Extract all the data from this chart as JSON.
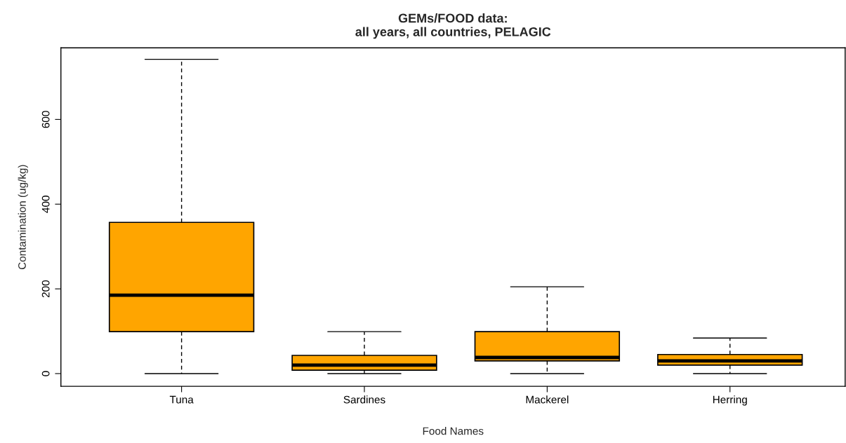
{
  "chart_data": {
    "type": "box",
    "title": "GEMs/FOOD data:\nall years, all countries, PELAGIC",
    "xlabel": "Food Names",
    "ylabel": "Contamination (ug/kg)",
    "categories": [
      "Tuna",
      "Sardines",
      "Mackerel",
      "Herring"
    ],
    "color": "#ffa500",
    "boxes": [
      {
        "low": 0,
        "q1": 99,
        "median": 185,
        "q3": 357,
        "high": 742
      },
      {
        "low": 0,
        "q1": 8,
        "median": 20,
        "q3": 43,
        "high": 99
      },
      {
        "low": 0,
        "q1": 30,
        "median": 38,
        "q3": 99,
        "high": 205
      },
      {
        "low": 0,
        "q1": 20,
        "median": 30,
        "q3": 45,
        "high": 84
      }
    ],
    "ylim": [
      -30,
      769
    ],
    "yticks": [
      0,
      200,
      400,
      600
    ]
  }
}
